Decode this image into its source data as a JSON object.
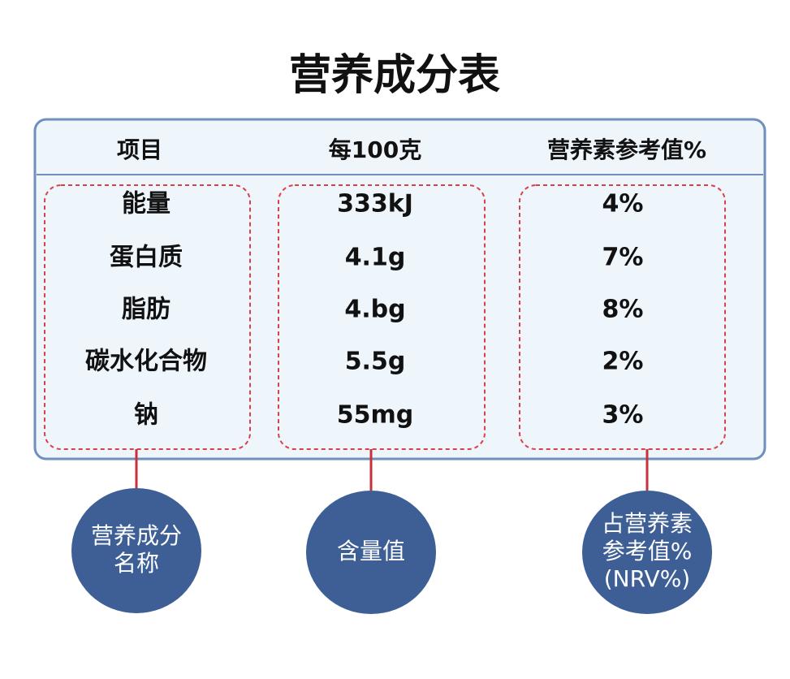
{
  "title": "营养成分表",
  "table": {
    "header": [
      "项目",
      "每100克",
      "营养素参考值%"
    ],
    "rows": [
      [
        "能量",
        "333kJ",
        "4%"
      ],
      [
        "蛋白质",
        "4.1g",
        "7%"
      ],
      [
        "脂肪",
        "4.bg",
        "8%"
      ],
      [
        "碳水化合物",
        "5.5g",
        "2%"
      ],
      [
        "钠",
        "55mg",
        "3%"
      ]
    ]
  },
  "callouts": [
    [
      "营养成分",
      "名称"
    ],
    [
      "含量值"
    ],
    [
      "占营养素",
      "参考值%",
      "(NRV%)"
    ]
  ]
}
